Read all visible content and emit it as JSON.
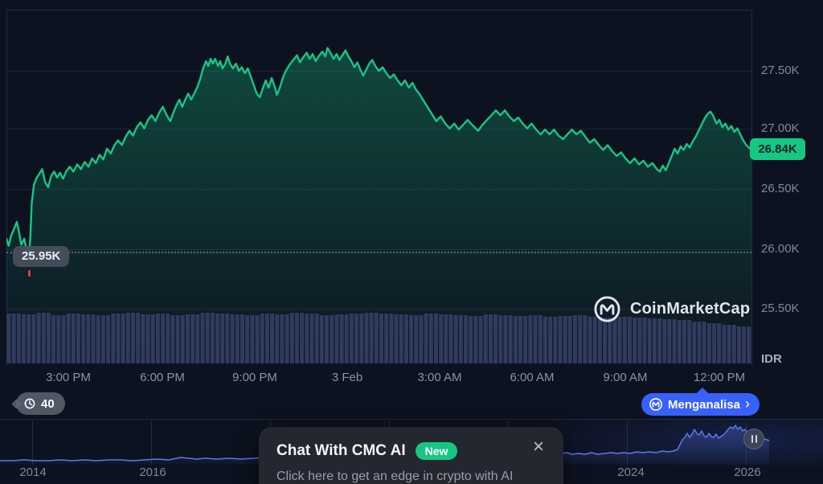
{
  "y_axis": {
    "labels": [
      "27.50K",
      "27.00K",
      "26.50K",
      "26.00K",
      "25.50K"
    ],
    "currency": "IDR",
    "current_price": "26.84K"
  },
  "x_axis": {
    "labels": [
      "3:00 PM",
      "6:00 PM",
      "9:00 PM",
      "3 Feb",
      "3:00 AM",
      "6:00 AM",
      "9:00 AM",
      "12:00 PM"
    ]
  },
  "low_marker": {
    "label": "25.95K"
  },
  "watermark": {
    "brand": "CoinMarketCap"
  },
  "history_pill": {
    "count": "40"
  },
  "analyze_button": {
    "label": "Menganalisa",
    "chevron": "›"
  },
  "navigator": {
    "years": [
      "2014",
      "2016",
      "2024",
      "2026"
    ]
  },
  "popup": {
    "title": "Chat With CMC AI",
    "badge": "New",
    "close": "×",
    "subtitle": "Click here to get an edge in crypto with AI"
  },
  "colors": {
    "green": "#16c784",
    "blue": "#3861fb",
    "red": "#ea3943",
    "volume": "#313b5e",
    "navigator_line": "#5c79e6"
  },
  "chart_data": [
    {
      "type": "area",
      "name": "price-24h",
      "color": "#16c784",
      "unit": "K IDR",
      "ylim": [
        25.04,
        28.01
      ],
      "y_ticks": [
        "25.50K",
        "26.00K",
        "26.50K",
        "27.00K",
        "27.50K"
      ],
      "x_ticks": [
        "3:00 PM",
        "6:00 PM",
        "9:00 PM",
        "3 Feb",
        "3:00 AM",
        "6:00 AM",
        "9:00 AM",
        "12:00 PM"
      ],
      "last_value": 26.84,
      "low_value": 25.95,
      "points": [
        [
          0.0,
          26.1
        ],
        [
          0.003,
          26.04
        ],
        [
          0.006,
          26.12
        ],
        [
          0.01,
          26.18
        ],
        [
          0.014,
          26.24
        ],
        [
          0.017,
          26.15
        ],
        [
          0.02,
          26.05
        ],
        [
          0.024,
          26.1
        ],
        [
          0.027,
          26.0
        ],
        [
          0.03,
          25.95
        ],
        [
          0.032,
          26.1
        ],
        [
          0.034,
          26.4
        ],
        [
          0.037,
          26.55
        ],
        [
          0.04,
          26.6
        ],
        [
          0.044,
          26.64
        ],
        [
          0.048,
          26.68
        ],
        [
          0.052,
          26.57
        ],
        [
          0.056,
          26.53
        ],
        [
          0.06,
          26.62
        ],
        [
          0.064,
          26.66
        ],
        [
          0.068,
          26.61
        ],
        [
          0.072,
          26.65
        ],
        [
          0.076,
          26.6
        ],
        [
          0.08,
          26.66
        ],
        [
          0.085,
          26.7
        ],
        [
          0.09,
          26.66
        ],
        [
          0.095,
          26.72
        ],
        [
          0.1,
          26.68
        ],
        [
          0.105,
          26.74
        ],
        [
          0.11,
          26.7
        ],
        [
          0.115,
          26.77
        ],
        [
          0.12,
          26.73
        ],
        [
          0.125,
          26.8
        ],
        [
          0.13,
          26.76
        ],
        [
          0.135,
          26.85
        ],
        [
          0.14,
          26.81
        ],
        [
          0.145,
          26.88
        ],
        [
          0.15,
          26.92
        ],
        [
          0.155,
          26.88
        ],
        [
          0.16,
          26.95
        ],
        [
          0.165,
          27.0
        ],
        [
          0.17,
          26.96
        ],
        [
          0.175,
          27.03
        ],
        [
          0.18,
          27.07
        ],
        [
          0.185,
          27.02
        ],
        [
          0.19,
          27.09
        ],
        [
          0.195,
          27.13
        ],
        [
          0.2,
          27.08
        ],
        [
          0.205,
          27.15
        ],
        [
          0.21,
          27.2
        ],
        [
          0.215,
          27.13
        ],
        [
          0.22,
          27.08
        ],
        [
          0.224,
          27.15
        ],
        [
          0.228,
          27.21
        ],
        [
          0.232,
          27.26
        ],
        [
          0.236,
          27.2
        ],
        [
          0.24,
          27.26
        ],
        [
          0.244,
          27.31
        ],
        [
          0.248,
          27.26
        ],
        [
          0.252,
          27.31
        ],
        [
          0.256,
          27.36
        ],
        [
          0.26,
          27.43
        ],
        [
          0.264,
          27.52
        ],
        [
          0.268,
          27.58
        ],
        [
          0.271,
          27.54
        ],
        [
          0.274,
          27.6
        ],
        [
          0.277,
          27.56
        ],
        [
          0.28,
          27.6
        ],
        [
          0.284,
          27.54
        ],
        [
          0.287,
          27.58
        ],
        [
          0.29,
          27.52
        ],
        [
          0.294,
          27.56
        ],
        [
          0.297,
          27.62
        ],
        [
          0.3,
          27.56
        ],
        [
          0.304,
          27.52
        ],
        [
          0.308,
          27.56
        ],
        [
          0.312,
          27.5
        ],
        [
          0.316,
          27.53
        ],
        [
          0.32,
          27.48
        ],
        [
          0.324,
          27.52
        ],
        [
          0.328,
          27.45
        ],
        [
          0.332,
          27.38
        ],
        [
          0.336,
          27.31
        ],
        [
          0.34,
          27.28
        ],
        [
          0.344,
          27.35
        ],
        [
          0.348,
          27.42
        ],
        [
          0.352,
          27.36
        ],
        [
          0.356,
          27.44
        ],
        [
          0.36,
          27.37
        ],
        [
          0.363,
          27.3
        ],
        [
          0.367,
          27.36
        ],
        [
          0.371,
          27.44
        ],
        [
          0.375,
          27.5
        ],
        [
          0.38,
          27.55
        ],
        [
          0.385,
          27.59
        ],
        [
          0.39,
          27.63
        ],
        [
          0.394,
          27.57
        ],
        [
          0.398,
          27.61
        ],
        [
          0.403,
          27.65
        ],
        [
          0.407,
          27.6
        ],
        [
          0.411,
          27.64
        ],
        [
          0.415,
          27.58
        ],
        [
          0.419,
          27.62
        ],
        [
          0.424,
          27.66
        ],
        [
          0.428,
          27.62
        ],
        [
          0.431,
          27.69
        ],
        [
          0.435,
          27.65
        ],
        [
          0.439,
          27.6
        ],
        [
          0.443,
          27.64
        ],
        [
          0.447,
          27.59
        ],
        [
          0.451,
          27.63
        ],
        [
          0.455,
          27.67
        ],
        [
          0.459,
          27.62
        ],
        [
          0.463,
          27.58
        ],
        [
          0.467,
          27.53
        ],
        [
          0.471,
          27.57
        ],
        [
          0.475,
          27.51
        ],
        [
          0.479,
          27.46
        ],
        [
          0.483,
          27.51
        ],
        [
          0.487,
          27.56
        ],
        [
          0.491,
          27.59
        ],
        [
          0.495,
          27.54
        ],
        [
          0.5,
          27.5
        ],
        [
          0.505,
          27.53
        ],
        [
          0.51,
          27.48
        ],
        [
          0.515,
          27.44
        ],
        [
          0.52,
          27.47
        ],
        [
          0.525,
          27.42
        ],
        [
          0.53,
          27.38
        ],
        [
          0.535,
          27.42
        ],
        [
          0.54,
          27.36
        ],
        [
          0.545,
          27.4
        ],
        [
          0.55,
          27.34
        ],
        [
          0.555,
          27.3
        ],
        [
          0.56,
          27.25
        ],
        [
          0.565,
          27.2
        ],
        [
          0.571,
          27.14
        ],
        [
          0.577,
          27.08
        ],
        [
          0.583,
          27.12
        ],
        [
          0.589,
          27.06
        ],
        [
          0.595,
          27.02
        ],
        [
          0.601,
          27.06
        ],
        [
          0.607,
          27.01
        ],
        [
          0.613,
          27.05
        ],
        [
          0.619,
          27.09
        ],
        [
          0.625,
          27.05
        ],
        [
          0.633,
          27.0
        ],
        [
          0.639,
          27.05
        ],
        [
          0.645,
          27.09
        ],
        [
          0.651,
          27.13
        ],
        [
          0.657,
          27.17
        ],
        [
          0.663,
          27.13
        ],
        [
          0.669,
          27.17
        ],
        [
          0.675,
          27.12
        ],
        [
          0.681,
          27.08
        ],
        [
          0.687,
          27.11
        ],
        [
          0.693,
          27.06
        ],
        [
          0.699,
          27.02
        ],
        [
          0.705,
          27.06
        ],
        [
          0.711,
          27.01
        ],
        [
          0.717,
          26.97
        ],
        [
          0.723,
          27.01
        ],
        [
          0.729,
          26.97
        ],
        [
          0.735,
          27.01
        ],
        [
          0.741,
          26.96
        ],
        [
          0.747,
          26.93
        ],
        [
          0.753,
          26.97
        ],
        [
          0.759,
          27.01
        ],
        [
          0.765,
          26.97
        ],
        [
          0.771,
          27.0
        ],
        [
          0.777,
          26.95
        ],
        [
          0.783,
          26.9
        ],
        [
          0.789,
          26.93
        ],
        [
          0.795,
          26.88
        ],
        [
          0.801,
          26.84
        ],
        [
          0.807,
          26.88
        ],
        [
          0.813,
          26.83
        ],
        [
          0.819,
          26.79
        ],
        [
          0.825,
          26.82
        ],
        [
          0.831,
          26.77
        ],
        [
          0.837,
          26.73
        ],
        [
          0.843,
          26.77
        ],
        [
          0.849,
          26.72
        ],
        [
          0.855,
          26.75
        ],
        [
          0.861,
          26.7
        ],
        [
          0.867,
          26.73
        ],
        [
          0.873,
          26.68
        ],
        [
          0.877,
          26.66
        ],
        [
          0.881,
          26.71
        ],
        [
          0.885,
          26.67
        ],
        [
          0.889,
          26.73
        ],
        [
          0.893,
          26.79
        ],
        [
          0.897,
          26.85
        ],
        [
          0.901,
          26.81
        ],
        [
          0.905,
          26.87
        ],
        [
          0.909,
          26.84
        ],
        [
          0.913,
          26.89
        ],
        [
          0.917,
          26.86
        ],
        [
          0.921,
          26.91
        ],
        [
          0.925,
          26.95
        ],
        [
          0.929,
          27.0
        ],
        [
          0.933,
          27.05
        ],
        [
          0.937,
          27.1
        ],
        [
          0.941,
          27.14
        ],
        [
          0.945,
          27.16
        ],
        [
          0.949,
          27.12
        ],
        [
          0.953,
          27.06
        ],
        [
          0.957,
          27.09
        ],
        [
          0.961,
          27.03
        ],
        [
          0.965,
          27.06
        ],
        [
          0.969,
          27.01
        ],
        [
          0.973,
          27.04
        ],
        [
          0.977,
          26.99
        ],
        [
          0.981,
          27.02
        ],
        [
          0.985,
          26.97
        ],
        [
          0.989,
          26.92
        ],
        [
          0.993,
          26.88
        ],
        [
          1.0,
          26.84
        ]
      ]
    },
    {
      "type": "bar",
      "name": "volume",
      "color": "#313b5e",
      "values": [
        62,
        61,
        63,
        60,
        62,
        61,
        60,
        62,
        63,
        61,
        62,
        60,
        61,
        63,
        62,
        61,
        60,
        62,
        61,
        63,
        62,
        60,
        61,
        62,
        63,
        62,
        61,
        60,
        62,
        61,
        60,
        59,
        61,
        60,
        59,
        60,
        58,
        59,
        60,
        58,
        57,
        58,
        57,
        56,
        55,
        54,
        52,
        50,
        48,
        46
      ]
    },
    {
      "type": "area",
      "name": "price-history-navigator",
      "color": "#5c79e6",
      "x_ticks": [
        "2014",
        "2016",
        "2024",
        "2026"
      ],
      "points": [
        [
          0,
          4
        ],
        [
          15,
          4
        ],
        [
          30,
          5
        ],
        [
          45,
          4
        ],
        [
          60,
          4
        ],
        [
          75,
          5
        ],
        [
          90,
          4
        ],
        [
          105,
          5
        ],
        [
          120,
          4
        ],
        [
          135,
          5
        ],
        [
          150,
          5
        ],
        [
          165,
          4
        ],
        [
          180,
          5
        ],
        [
          195,
          6
        ],
        [
          210,
          5
        ],
        [
          225,
          8
        ],
        [
          235,
          7
        ],
        [
          245,
          6
        ],
        [
          255,
          7
        ],
        [
          270,
          6
        ],
        [
          285,
          7
        ],
        [
          300,
          6
        ],
        [
          315,
          7
        ],
        [
          330,
          8
        ],
        [
          345,
          7
        ],
        [
          360,
          8
        ],
        [
          375,
          7
        ],
        [
          390,
          8
        ],
        [
          405,
          7
        ],
        [
          420,
          8
        ],
        [
          435,
          8
        ],
        [
          450,
          10
        ],
        [
          455,
          8
        ],
        [
          465,
          9
        ],
        [
          480,
          8
        ],
        [
          495,
          9
        ],
        [
          510,
          8
        ],
        [
          520,
          9
        ],
        [
          530,
          8
        ],
        [
          545,
          9
        ],
        [
          560,
          10
        ],
        [
          570,
          9
        ],
        [
          580,
          10
        ],
        [
          595,
          11
        ],
        [
          605,
          10
        ],
        [
          615,
          12
        ],
        [
          625,
          10
        ],
        [
          635,
          11
        ],
        [
          645,
          10
        ],
        [
          655,
          11
        ],
        [
          665,
          12
        ],
        [
          675,
          11
        ],
        [
          685,
          12
        ],
        [
          695,
          12
        ],
        [
          705,
          14
        ],
        [
          712,
          12
        ],
        [
          720,
          13
        ],
        [
          728,
          12
        ],
        [
          736,
          14
        ],
        [
          744,
          12
        ],
        [
          752,
          13
        ],
        [
          760,
          14
        ],
        [
          768,
          13
        ],
        [
          776,
          14
        ],
        [
          784,
          13
        ],
        [
          792,
          15
        ],
        [
          800,
          14
        ],
        [
          808,
          15
        ],
        [
          816,
          14
        ],
        [
          824,
          16
        ],
        [
          832,
          15
        ],
        [
          838,
          16
        ],
        [
          843,
          18
        ],
        [
          846,
          24
        ],
        [
          849,
          30
        ],
        [
          852,
          33
        ],
        [
          855,
          38
        ],
        [
          858,
          33
        ],
        [
          861,
          37
        ],
        [
          864,
          43
        ],
        [
          867,
          38
        ],
        [
          870,
          36
        ],
        [
          873,
          41
        ],
        [
          876,
          35
        ],
        [
          879,
          33
        ],
        [
          882,
          38
        ],
        [
          885,
          34
        ],
        [
          888,
          33
        ],
        [
          891,
          37
        ],
        [
          894,
          32
        ],
        [
          897,
          34
        ],
        [
          900,
          36
        ],
        [
          903,
          39
        ],
        [
          906,
          43
        ],
        [
          909,
          46
        ],
        [
          912,
          44
        ],
        [
          915,
          48
        ],
        [
          918,
          43
        ],
        [
          921,
          46
        ],
        [
          924,
          41
        ],
        [
          927,
          43
        ],
        [
          930,
          38
        ],
        [
          933,
          36
        ],
        [
          936,
          34
        ],
        [
          939,
          32
        ],
        [
          942,
          30
        ],
        [
          945,
          31
        ],
        [
          948,
          29
        ],
        [
          951,
          31
        ],
        [
          954,
          30
        ],
        [
          957,
          29
        ]
      ]
    }
  ]
}
